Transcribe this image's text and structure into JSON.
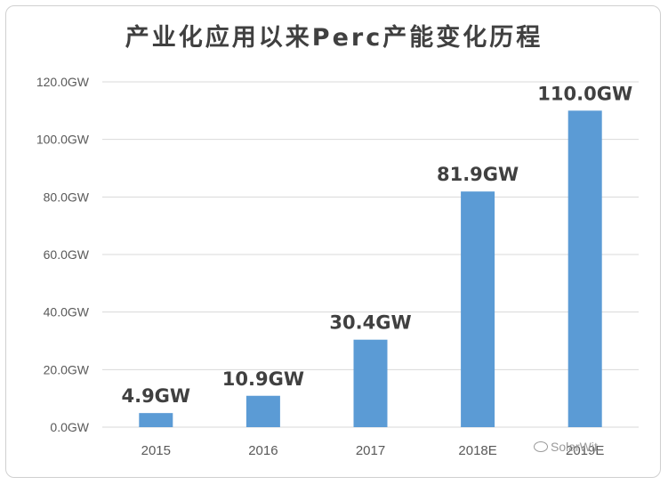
{
  "chart_data": {
    "type": "bar",
    "title": "产业化应用以来Perc产能变化历程",
    "categories": [
      "2015",
      "2016",
      "2017",
      "2018E",
      "2019E"
    ],
    "values": [
      4.9,
      10.9,
      30.4,
      81.9,
      110.0
    ],
    "data_labels": [
      "4.9GW",
      "10.9GW",
      "30.4GW",
      "81.9GW",
      "110.0GW"
    ],
    "y_ticks": [
      "0.0GW",
      "20.0GW",
      "40.0GW",
      "60.0GW",
      "80.0GW",
      "100.0GW",
      "120.0GW"
    ],
    "ylim": [
      0,
      120
    ],
    "grid": true,
    "bar_color": "#5b9bd5",
    "xlabel": "",
    "ylabel": ""
  },
  "watermark": "SolarWit"
}
